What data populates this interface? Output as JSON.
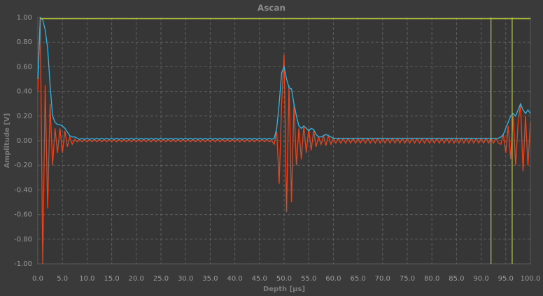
{
  "chart_data": {
    "type": "line",
    "title": "Ascan",
    "x_label": "Depth [µs]",
    "y_label": "Amplitude [V]",
    "xlim": [
      0,
      100
    ],
    "ylim": [
      -1,
      1
    ],
    "xticks": [
      {
        "value": 0,
        "label": "0.0"
      },
      {
        "value": 5,
        "label": "5.0"
      },
      {
        "value": 10,
        "label": "10.0"
      },
      {
        "value": 15,
        "label": "15.0"
      },
      {
        "value": 20,
        "label": "20.0"
      },
      {
        "value": 25,
        "label": "25.0"
      },
      {
        "value": 30,
        "label": "30.0"
      },
      {
        "value": 35,
        "label": "35.0"
      },
      {
        "value": 40,
        "label": "40.0"
      },
      {
        "value": 45,
        "label": "45.0"
      },
      {
        "value": 50,
        "label": "50.0"
      },
      {
        "value": 55,
        "label": "55.0"
      },
      {
        "value": 60,
        "label": "60.0"
      },
      {
        "value": 65,
        "label": "65.0"
      },
      {
        "value": 70,
        "label": "70.0"
      },
      {
        "value": 75,
        "label": "75.0"
      },
      {
        "value": 80,
        "label": "80.0"
      },
      {
        "value": 85,
        "label": "85.0"
      },
      {
        "value": 90,
        "label": "90.0"
      },
      {
        "value": 95,
        "label": "95.0"
      },
      {
        "value": 100,
        "label": "100.0"
      }
    ],
    "yticks": [
      {
        "value": 1,
        "label": "1.00"
      },
      {
        "value": 0.8,
        "label": "0.80"
      },
      {
        "value": 0.6,
        "label": "0.60"
      },
      {
        "value": 0.4,
        "label": "0.40"
      },
      {
        "value": 0.2,
        "label": "0.20"
      },
      {
        "value": 0,
        "label": "0.00"
      },
      {
        "value": -0.2,
        "label": "-0.20"
      },
      {
        "value": -0.4,
        "label": "-0.40"
      },
      {
        "value": -0.6,
        "label": "-0.60"
      },
      {
        "value": -0.8,
        "label": "-0.80"
      },
      {
        "value": -1,
        "label": "-1.00"
      }
    ],
    "grid": true,
    "gate_color": "#b8cc30",
    "gate_level": 0.99,
    "gate_start": 0.5,
    "gate_lines": [
      92,
      96.3
    ],
    "x": [
      0,
      0.5,
      1,
      1.5,
      2,
      2.5,
      3,
      3.5,
      4,
      4.5,
      5,
      5.5,
      6,
      6.5,
      7,
      7.5,
      8,
      8.5,
      9,
      9.5,
      10,
      10.5,
      11,
      11.5,
      12,
      12.5,
      13,
      13.5,
      14,
      14.5,
      15,
      15.5,
      16,
      16.5,
      17,
      17.5,
      18,
      18.5,
      19,
      19.5,
      20,
      20.5,
      21,
      21.5,
      22,
      22.5,
      23,
      23.5,
      24,
      24.5,
      25,
      25.5,
      26,
      26.5,
      27,
      27.5,
      28,
      28.5,
      29,
      29.5,
      30,
      30.5,
      31,
      31.5,
      32,
      32.5,
      33,
      33.5,
      34,
      34.5,
      35,
      35.5,
      36,
      36.5,
      37,
      37.5,
      38,
      38.5,
      39,
      39.5,
      40,
      40.5,
      41,
      41.5,
      42,
      42.5,
      43,
      43.5,
      44,
      44.5,
      45,
      45.5,
      46,
      46.5,
      47,
      47.5,
      48,
      48.5,
      49,
      49.5,
      50,
      50.5,
      51,
      51.5,
      52,
      52.5,
      53,
      53.5,
      54,
      54.5,
      55,
      55.5,
      56,
      56.5,
      57,
      57.5,
      58,
      58.5,
      59,
      59.5,
      60,
      60.5,
      61,
      61.5,
      62,
      62.5,
      63,
      63.5,
      64,
      64.5,
      65,
      65.5,
      66,
      66.5,
      67,
      67.5,
      68,
      68.5,
      69,
      69.5,
      70,
      70.5,
      71,
      71.5,
      72,
      72.5,
      73,
      73.5,
      74,
      74.5,
      75,
      75.5,
      76,
      76.5,
      77,
      77.5,
      78,
      78.5,
      79,
      79.5,
      80,
      80.5,
      81,
      81.5,
      82,
      82.5,
      83,
      83.5,
      84,
      84.5,
      85,
      85.5,
      86,
      86.5,
      87,
      87.5,
      88,
      88.5,
      89,
      89.5,
      90,
      90.5,
      91,
      91.5,
      92,
      92.5,
      93,
      93.5,
      94,
      94.5,
      95,
      95.5,
      96,
      96.5,
      97,
      97.5,
      98,
      98.5,
      99,
      99.5,
      100
    ],
    "series": [
      {
        "color": "#e8451e",
        "values": [
          0.4,
          1.0,
          -1.0,
          0.45,
          -0.55,
          0.3,
          -0.2,
          0.1,
          -0.1,
          0.1,
          -0.1,
          0.08,
          -0.05,
          0.03,
          -0.03,
          0.01,
          -0.01,
          0.01,
          -0.01,
          0.01,
          -0.01,
          0.01,
          -0.01,
          0.01,
          -0.01,
          0.01,
          -0.01,
          0.01,
          -0.01,
          0.01,
          -0.01,
          0.01,
          -0.01,
          0.01,
          -0.01,
          0.01,
          -0.01,
          0.01,
          -0.01,
          0.01,
          -0.01,
          0.01,
          -0.01,
          0.01,
          -0.01,
          0.01,
          -0.01,
          0.01,
          -0.01,
          0.01,
          -0.01,
          0.01,
          -0.01,
          0.01,
          -0.01,
          0.01,
          -0.01,
          0.01,
          -0.01,
          0.01,
          -0.01,
          0.01,
          -0.01,
          0.01,
          -0.01,
          0.01,
          -0.01,
          0.01,
          -0.01,
          0.01,
          -0.01,
          0.01,
          -0.01,
          0.01,
          -0.01,
          0.01,
          -0.01,
          0.01,
          -0.01,
          0.01,
          -0.01,
          0.01,
          -0.01,
          0.01,
          -0.01,
          0.01,
          -0.01,
          0.01,
          -0.01,
          0.01,
          -0.01,
          0.01,
          -0.01,
          0.01,
          -0.01,
          0,
          -0.03,
          0.08,
          -0.35,
          0.3,
          0.7,
          -0.58,
          0.45,
          -0.5,
          0.3,
          -0.2,
          0.1,
          -0.15,
          0.12,
          -0.1,
          0.1,
          -0.08,
          0.08,
          -0.05,
          0.03,
          -0.03,
          0.04,
          -0.04,
          0.04,
          -0.03,
          0.02,
          -0.02,
          0.02,
          -0.02,
          0.02,
          -0.02,
          0.02,
          -0.02,
          0.02,
          -0.02,
          0.02,
          -0.02,
          0.02,
          -0.02,
          0.02,
          -0.02,
          0.02,
          -0.02,
          0.02,
          -0.02,
          0.02,
          -0.02,
          0.02,
          -0.02,
          0.02,
          -0.02,
          0.02,
          -0.02,
          0.02,
          -0.02,
          0.02,
          -0.02,
          0.02,
          -0.02,
          0.02,
          -0.02,
          0.02,
          -0.02,
          0.02,
          -0.02,
          0.02,
          -0.02,
          0.02,
          -0.02,
          0.02,
          -0.02,
          0.02,
          -0.02,
          0.02,
          -0.02,
          0.02,
          -0.02,
          0.02,
          -0.02,
          0.02,
          -0.02,
          0.02,
          -0.02,
          0.02,
          -0.02,
          0.02,
          -0.02,
          0.02,
          -0.02,
          0.02,
          -0.02,
          0.02,
          -0.02,
          -0.03,
          0.05,
          -0.1,
          0.12,
          -0.15,
          0.2,
          -0.2,
          0.15,
          0.3,
          -0.25,
          0.2,
          -0.2,
          0.15
        ]
      },
      {
        "color": "#2fb6e6",
        "values": [
          0.5,
          1.0,
          0.98,
          0.9,
          0.75,
          0.45,
          0.2,
          0.15,
          0.13,
          0.13,
          0.12,
          0.1,
          0.07,
          0.04,
          0.03,
          0.03,
          0.02,
          0.01,
          0.02,
          0.01,
          0.02,
          0.01,
          0.02,
          0.01,
          0.02,
          0.01,
          0.02,
          0.01,
          0.02,
          0.01,
          0.02,
          0.01,
          0.02,
          0.01,
          0.02,
          0.01,
          0.02,
          0.01,
          0.02,
          0.01,
          0.02,
          0.01,
          0.02,
          0.01,
          0.02,
          0.01,
          0.02,
          0.01,
          0.02,
          0.01,
          0.02,
          0.01,
          0.02,
          0.01,
          0.02,
          0.01,
          0.02,
          0.01,
          0.02,
          0.01,
          0.02,
          0.01,
          0.02,
          0.01,
          0.02,
          0.01,
          0.02,
          0.01,
          0.02,
          0.01,
          0.02,
          0.01,
          0.02,
          0.01,
          0.02,
          0.01,
          0.02,
          0.01,
          0.02,
          0.01,
          0.02,
          0.01,
          0.02,
          0.01,
          0.02,
          0.01,
          0.02,
          0.01,
          0.02,
          0.01,
          0.02,
          0.01,
          0.02,
          0.01,
          0.02,
          0.01,
          0.02,
          0.1,
          0.3,
          0.55,
          0.6,
          0.5,
          0.43,
          0.42,
          0.3,
          0.2,
          0.12,
          0.1,
          0.12,
          0.1,
          0.08,
          0.1,
          0.09,
          0.05,
          0.03,
          0.03,
          0.04,
          0.05,
          0.04,
          0.03,
          0.02,
          0.02,
          0.015,
          0.02,
          0.015,
          0.02,
          0.015,
          0.02,
          0.015,
          0.02,
          0.015,
          0.02,
          0.015,
          0.02,
          0.015,
          0.02,
          0.015,
          0.02,
          0.015,
          0.02,
          0.015,
          0.02,
          0.015,
          0.02,
          0.015,
          0.02,
          0.015,
          0.02,
          0.015,
          0.02,
          0.015,
          0.02,
          0.015,
          0.02,
          0.015,
          0.02,
          0.015,
          0.02,
          0.015,
          0.02,
          0.015,
          0.02,
          0.015,
          0.02,
          0.015,
          0.02,
          0.015,
          0.02,
          0.015,
          0.02,
          0.015,
          0.02,
          0.015,
          0.02,
          0.015,
          0.02,
          0.015,
          0.02,
          0.015,
          0.02,
          0.015,
          0.02,
          0.015,
          0.02,
          0.015,
          0.02,
          0.015,
          0.02,
          0.03,
          0.05,
          0.1,
          0.15,
          0.2,
          0.22,
          0.2,
          0.25,
          0.3,
          0.25,
          0.22,
          0.25,
          0.22
        ]
      }
    ]
  }
}
